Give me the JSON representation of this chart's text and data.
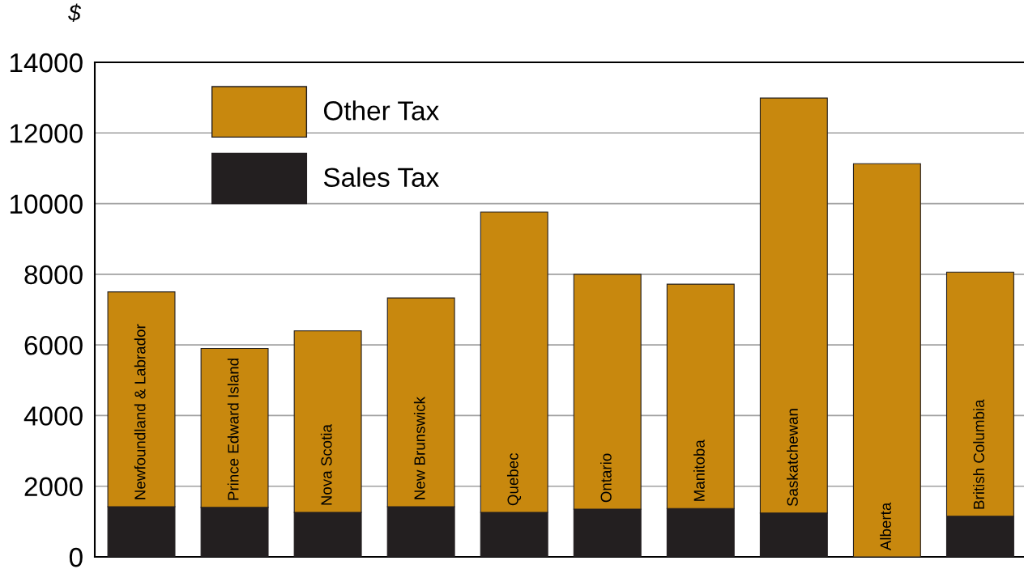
{
  "chart_data": {
    "type": "bar",
    "ylabel": "$",
    "stacked": true,
    "categories": [
      "Newfoundland & Labrador",
      "Prince Edward Island",
      "Nova Scotia",
      "New Brunswick",
      "Quebec",
      "Ontario",
      "Manitoba",
      "Saskatchewan",
      "Alberta",
      "British Columbia"
    ],
    "series": [
      {
        "name": "Sales Tax",
        "color": "#231f20",
        "values": [
          1420,
          1400,
          1260,
          1420,
          1260,
          1350,
          1370,
          1240,
          0,
          1150
        ]
      },
      {
        "name": "Other Tax",
        "color": "#c8880e",
        "values": [
          6080,
          4500,
          5140,
          5910,
          8500,
          6650,
          6350,
          11750,
          11130,
          6910
        ]
      }
    ],
    "ylim": [
      0,
      14000
    ],
    "yticks": [
      0,
      2000,
      4000,
      6000,
      8000,
      10000,
      12000,
      14000
    ],
    "grid": "y",
    "legend": "top left",
    "tick_labels": "y"
  }
}
